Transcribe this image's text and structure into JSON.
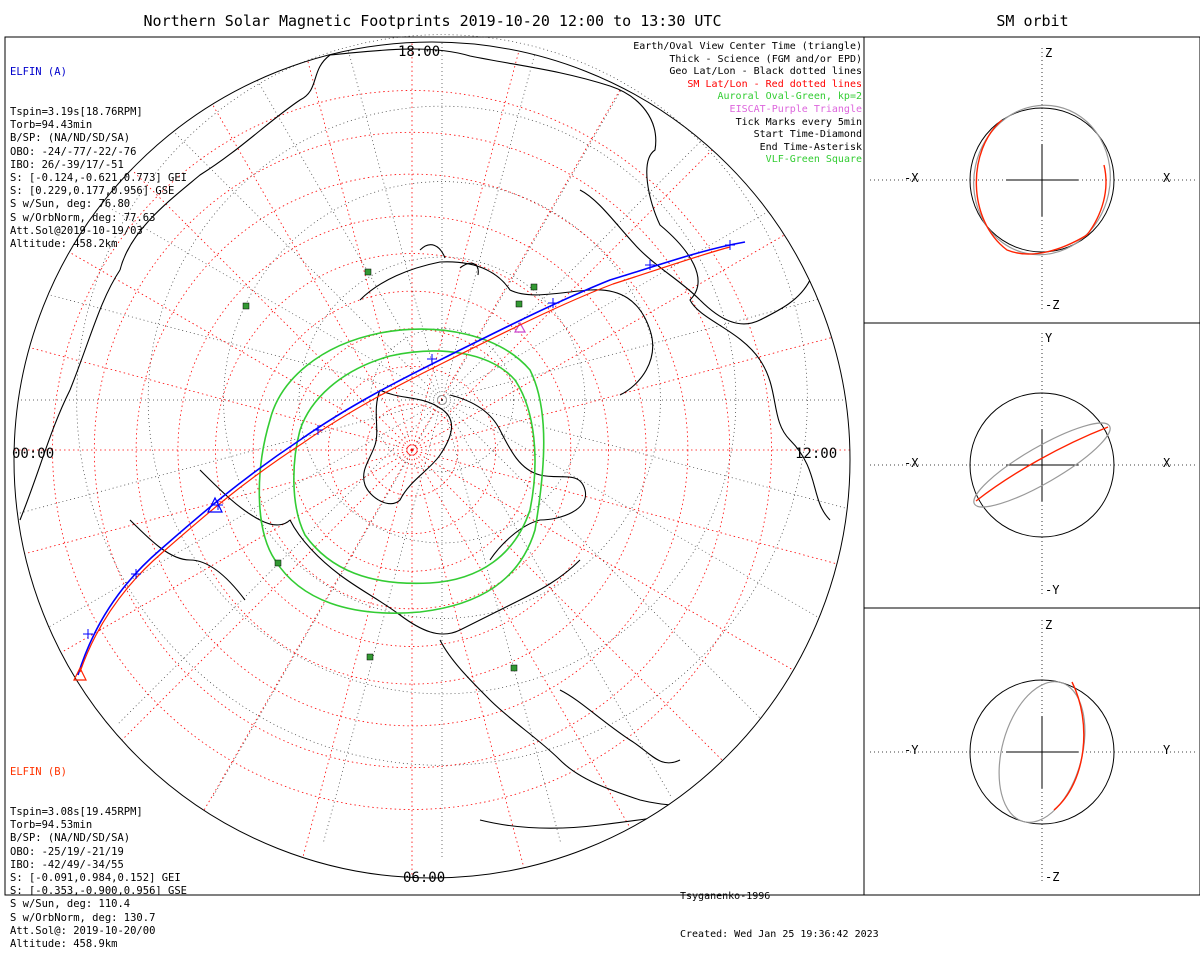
{
  "main_title": "Northern Solar Magnetic Footprints 2019-10-20 12:00 to 13:30 UTC",
  "orbit_title": "SM orbit",
  "elfin_a": {
    "name": "ELFIN (A)",
    "color": "#0000cc",
    "lines": [
      "Tspin=3.19s[18.76RPM]",
      "Torb=94.43min",
      "B/SP: (NA/ND/SD/SA)",
      "OBO: -24/-77/-22/-76",
      "IBO: 26/-39/17/-51",
      "S: [-0.124,-0.621,0.773] GEI",
      "S: [0.229,0.177,0.956] GSE",
      "S w/Sun, deg: 76.80",
      "S w/OrbNorm, deg: 77.63",
      "Att.Sol@2019-10-19/03",
      "Altitude: 458.2km"
    ]
  },
  "elfin_b": {
    "name": "ELFIN (B)",
    "color": "#ff3300",
    "lines": [
      "Tspin=3.08s[19.45RPM]",
      "Torb=94.53min",
      "B/SP: (NA/ND/SD/SA)",
      "OBO: -25/19/-21/19",
      "IBO: -42/49/-34/55",
      "S: [-0.091,0.984,0.152] GEI",
      "S: [-0.353,-0.900,0.956] GSE",
      "S w/Sun, deg: 110.4",
      "S w/OrbNorm, deg: 130.7",
      "Att.Sol@: 2019-10-20/00",
      "Altitude: 458.9km"
    ]
  },
  "legend": [
    {
      "text": "Earth/Oval View Center Time (triangle)",
      "color": "#000000"
    },
    {
      "text": "Thick - Science (FGM and/or EPD)",
      "color": "#000000"
    },
    {
      "text": "Geo Lat/Lon - Black dotted lines",
      "color": "#000000"
    },
    {
      "text": "SM Lat/Lon - Red dotted lines",
      "color": "#ff0000"
    },
    {
      "text": "Auroral Oval-Green, kp=2",
      "color": "#33cc33"
    },
    {
      "text": "EISCAT-Purple Triangle",
      "color": "#dd66dd"
    },
    {
      "text": "Tick Marks every 5min",
      "color": "#000000"
    },
    {
      "text": "Start Time-Diamond",
      "color": "#000000"
    },
    {
      "text": "End Time-Asterisk",
      "color": "#000000"
    },
    {
      "text": "VLF-Green Square",
      "color": "#33cc33"
    }
  ],
  "time_labels": {
    "top": "18:00",
    "left": "00:00",
    "right": "12:00",
    "bottom": "06:00"
  },
  "credit": {
    "model": "Tsyganenko-1996",
    "created": "Created: Wed Jan 25 19:36:42 2023"
  },
  "panels": [
    {
      "h_neg": "-X",
      "h_pos": "X",
      "v_pos": "Z",
      "v_neg": "-Z"
    },
    {
      "h_neg": "-X",
      "h_pos": "X",
      "v_pos": "Y",
      "v_neg": "-Y"
    },
    {
      "h_neg": "-Y",
      "h_pos": "Y",
      "v_pos": "Z",
      "v_neg": "-Z"
    }
  ],
  "colors": {
    "probe_a": "#0000ff",
    "probe_b": "#ff2200",
    "oval": "#33cc33",
    "sm_grid": "#ff0000",
    "vlf": "#228822",
    "eiscat": "#cc44cc",
    "orbit_gray": "#999999"
  }
}
